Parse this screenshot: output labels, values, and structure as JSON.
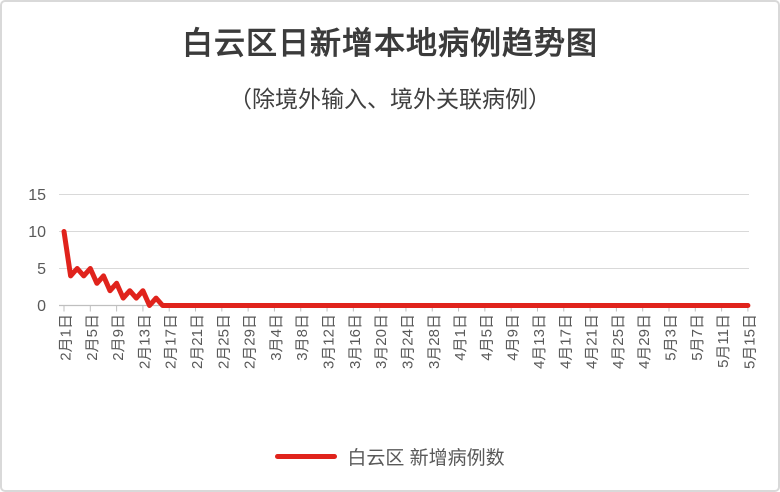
{
  "title": "白云区日新增本地病例趋势图",
  "subtitle": "（除境外输入、境外关联病例）",
  "legend": {
    "label": "白云区 新增病例数"
  },
  "colors": {
    "series": "#e0231c",
    "title_text": "#3b3b3b",
    "axis_text": "#595959",
    "gridline": "#d9d9d9",
    "axis_line": "#bfbfbf"
  },
  "chart_data": {
    "type": "line",
    "title": "白云区日新增本地病例趋势图",
    "subtitle": "（除境外输入、境外关联病例）",
    "series_name": "白云区 新增病例数",
    "xlabel": "",
    "ylabel": "",
    "ylim": [
      0,
      15
    ],
    "yticks": [
      0,
      5,
      10,
      15
    ],
    "grid": "horizontal",
    "legend_position": "bottom",
    "x_tick_interval": 4,
    "x_tick_labels_shown": [
      "2月1日",
      "2月5日",
      "2月9日",
      "2月13日",
      "2月17日",
      "2月21日",
      "2月25日",
      "2月29日",
      "3月4日",
      "3月8日",
      "3月12日",
      "3月16日",
      "3月20日",
      "3月24日",
      "3月28日",
      "4月1日",
      "4月5日",
      "4月9日",
      "4月13日",
      "4月17日",
      "4月21日",
      "4月25日",
      "4月29日",
      "5月3日",
      "5月7日",
      "5月11日",
      "5月15日"
    ],
    "categories": [
      "2月1日",
      "2月2日",
      "2月3日",
      "2月4日",
      "2月5日",
      "2月6日",
      "2月7日",
      "2月8日",
      "2月9日",
      "2月10日",
      "2月11日",
      "2月12日",
      "2月13日",
      "2月14日",
      "2月15日",
      "2月16日",
      "2月17日",
      "2月18日",
      "2月19日",
      "2月20日",
      "2月21日",
      "2月22日",
      "2月23日",
      "2月24日",
      "2月25日",
      "2月26日",
      "2月27日",
      "2月28日",
      "2月29日",
      "3月1日",
      "3月2日",
      "3月3日",
      "3月4日",
      "3月5日",
      "3月6日",
      "3月7日",
      "3月8日",
      "3月9日",
      "3月10日",
      "3月11日",
      "3月12日",
      "3月13日",
      "3月14日",
      "3月15日",
      "3月16日",
      "3月17日",
      "3月18日",
      "3月19日",
      "3月20日",
      "3月21日",
      "3月22日",
      "3月23日",
      "3月24日",
      "3月25日",
      "3月26日",
      "3月27日",
      "3月28日",
      "3月29日",
      "3月30日",
      "3月31日",
      "4月1日",
      "4月2日",
      "4月3日",
      "4月4日",
      "4月5日",
      "4月6日",
      "4月7日",
      "4月8日",
      "4月9日",
      "4月10日",
      "4月11日",
      "4月12日",
      "4月13日",
      "4月14日",
      "4月15日",
      "4月16日",
      "4月17日",
      "4月18日",
      "4月19日",
      "4月20日",
      "4月21日",
      "4月22日",
      "4月23日",
      "4月24日",
      "4月25日",
      "4月26日",
      "4月27日",
      "4月28日",
      "4月29日",
      "4月30日",
      "5月1日",
      "5月2日",
      "5月3日",
      "5月4日",
      "5月5日",
      "5月6日",
      "5月7日",
      "5月8日",
      "5月9日",
      "5月10日",
      "5月11日",
      "5月12日",
      "5月13日",
      "5月14日",
      "5月15日"
    ],
    "values": [
      10,
      4,
      5,
      4,
      5,
      3,
      4,
      2,
      3,
      1,
      2,
      1,
      2,
      0,
      1,
      0,
      0,
      0,
      0,
      0,
      0,
      0,
      0,
      0,
      0,
      0,
      0,
      0,
      0,
      0,
      0,
      0,
      0,
      0,
      0,
      0,
      0,
      0,
      0,
      0,
      0,
      0,
      0,
      0,
      0,
      0,
      0,
      0,
      0,
      0,
      0,
      0,
      0,
      0,
      0,
      0,
      0,
      0,
      0,
      0,
      0,
      0,
      0,
      0,
      0,
      0,
      0,
      0,
      0,
      0,
      0,
      0,
      0,
      0,
      0,
      0,
      0,
      0,
      0,
      0,
      0,
      0,
      0,
      0,
      0,
      0,
      0,
      0,
      0,
      0,
      0,
      0,
      0,
      0,
      0,
      0,
      0,
      0,
      0,
      0,
      0,
      0,
      0,
      0,
      0
    ]
  }
}
